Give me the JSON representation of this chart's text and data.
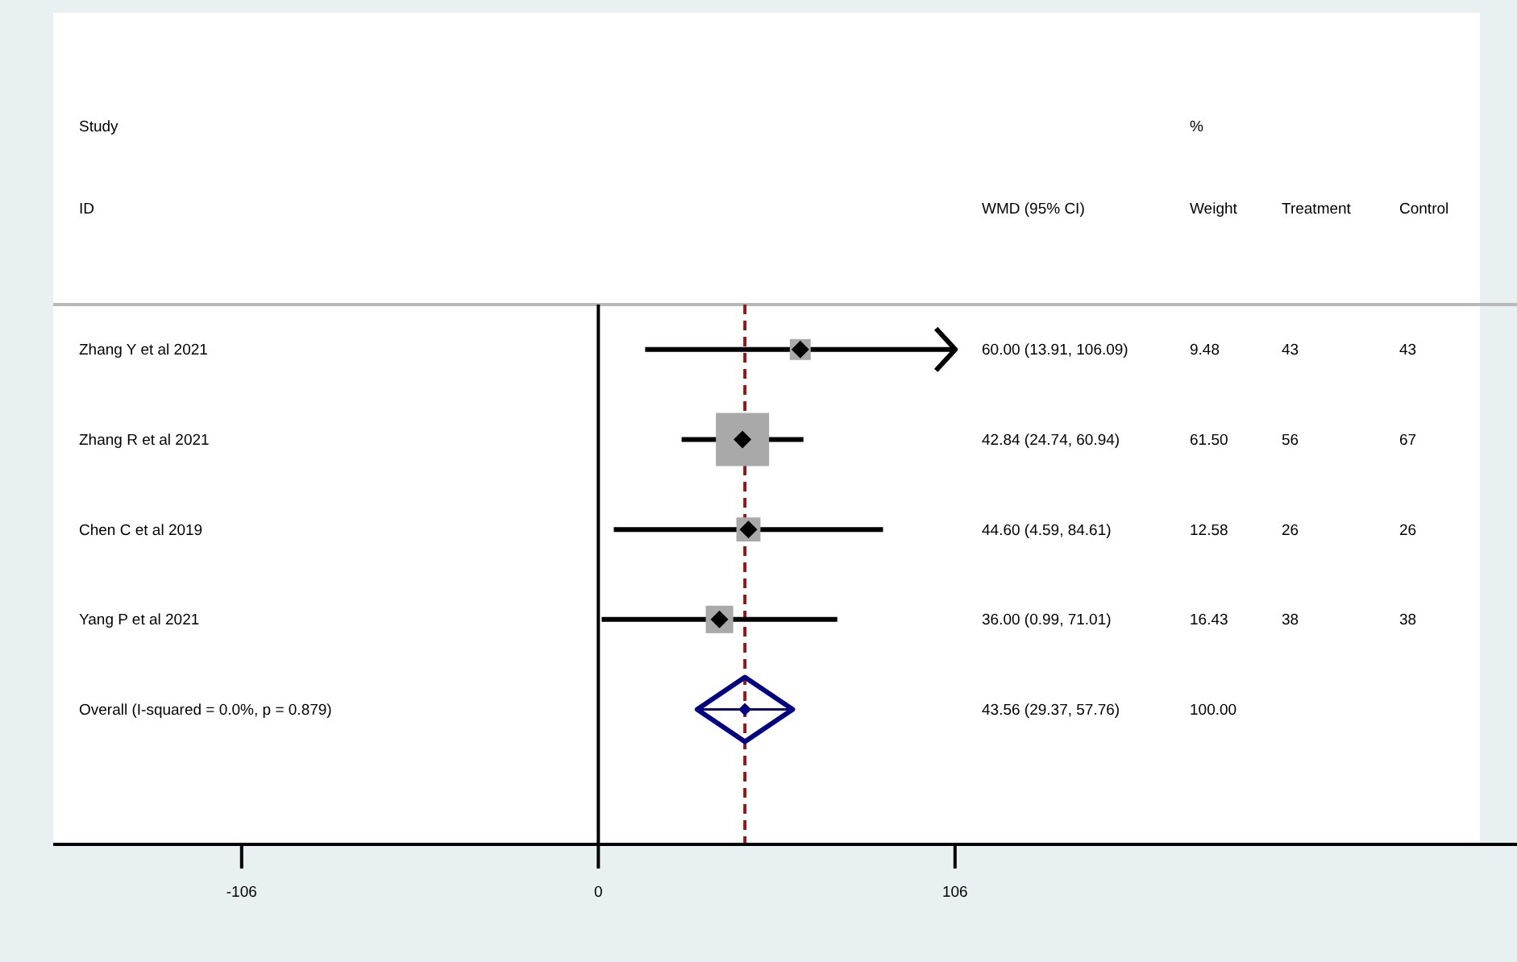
{
  "chart_data": {
    "type": "scatter",
    "orientation": "horizontal",
    "categories": [
      "Zhang Y et al 2021",
      "Zhang R et al 2021",
      "Chen C et al 2019",
      "Yang P et al 2021",
      "Overall  (I-squared = 0.0%, p = 0.879)",
      null
    ],
    "series": [
      {
        "color": "#a9a9a9",
        "marker": "square",
        "values": [
          60.0,
          42.84,
          44.6,
          36.0,
          null,
          null
        ],
        "errors": [
          [
            13.91,
            106.09
          ],
          [
            24.74,
            60.94
          ],
          [
            4.59,
            84.61
          ],
          [
            0.99,
            71.01
          ],
          null,
          null
        ],
        "sizes": [
          0.154,
          1,
          0.205,
          0.267,
          null,
          null
        ]
      },
      {
        "color": "#000080",
        "marker": "diamond",
        "values": [
          null,
          null,
          null,
          null,
          43.56,
          null
        ],
        "errors": [
          null,
          null,
          null,
          null,
          [
            29.37,
            57.76
          ],
          null
        ]
      }
    ],
    "xlim": [
      -162,
      273
    ],
    "xticks": [
      -106,
      0,
      106
    ],
    "ref_lines": [
      {
        "axis": "x",
        "value": 0,
        "color": "#000000",
        "line_style": "solid"
      },
      {
        "axis": "x",
        "value": 43.56,
        "color": "#8b1a1a",
        "line_style": "dashed"
      }
    ],
    "annotations": [
      "Study",
      "ID",
      "WMD (95% CI)",
      "%",
      "Weight",
      "Treatment",
      "Control",
      "60.00 (13.91, 106.09)",
      "9.48",
      "43",
      "43",
      "42.84 (24.74, 60.94)",
      "61.50",
      "56",
      "67",
      "44.60 (4.59, 84.61)",
      "12.58",
      "26",
      "26",
      "36.00 (0.99, 71.01)",
      "16.43",
      "38",
      "38",
      "43.56 (29.37, 57.76)",
      "100.00"
    ]
  }
}
